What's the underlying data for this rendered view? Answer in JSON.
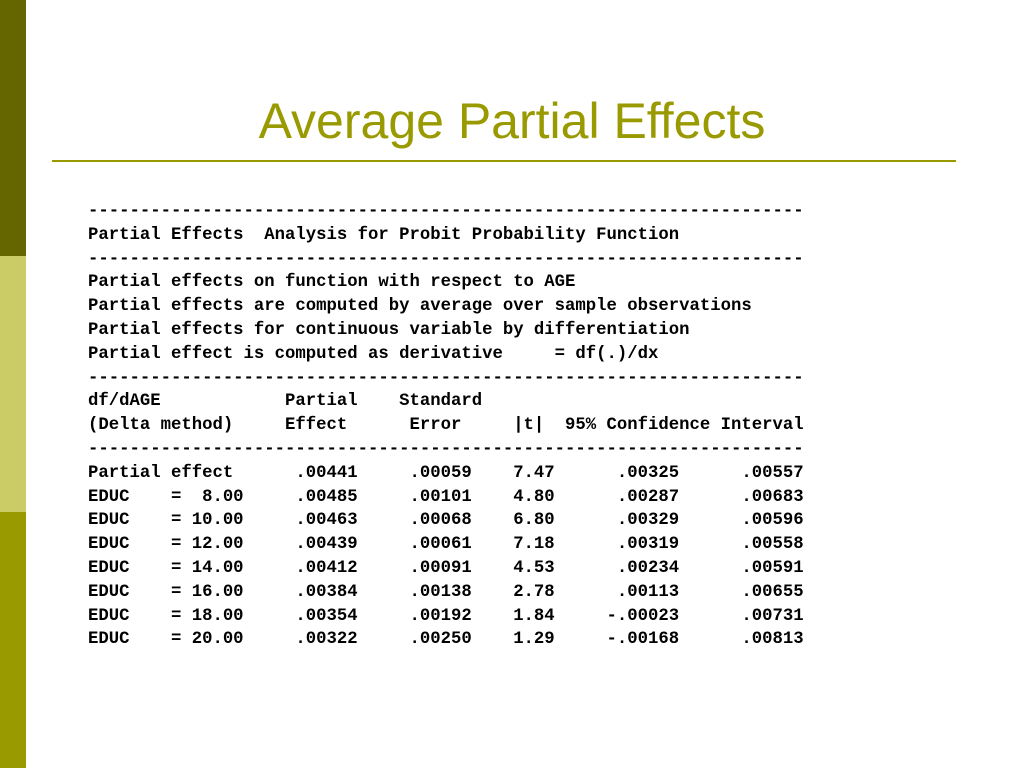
{
  "colors": {
    "sidebar_dark": "#666600",
    "sidebar_light": "#CCCC66",
    "sidebar_mid": "#999900",
    "title": "#999900",
    "rule": "#999900"
  },
  "slide": {
    "title": "Average Partial Effects"
  },
  "output": {
    "divider": "---------------------------------------------------------------------",
    "heading": "Partial Effects  Analysis for Probit Probability Function",
    "notes": [
      "Partial effects on function with respect to AGE",
      "Partial effects are computed by average over sample observations",
      "Partial effects for continuous variable by differentiation",
      "Partial effect is computed as derivative     = df(.)/dx"
    ],
    "column_header_1": "df/dAGE            Partial    Standard",
    "column_header_2": "(Delta method)     Effect      Error     |t|  95% Confidence Interval",
    "rows": [
      "Partial effect      .00441     .00059    7.47      .00325      .00557",
      "EDUC    =  8.00     .00485     .00101    4.80      .00287      .00683",
      "EDUC    = 10.00     .00463     .00068    6.80      .00329      .00596",
      "EDUC    = 12.00     .00439     .00061    7.18      .00319      .00558",
      "EDUC    = 14.00     .00412     .00091    4.53      .00234      .00591",
      "EDUC    = 16.00     .00384     .00138    2.78      .00113      .00655",
      "EDUC    = 18.00     .00354     .00192    1.84     -.00023      .00731",
      "EDUC    = 20.00     .00322     .00250    1.29     -.00168      .00813"
    ]
  }
}
